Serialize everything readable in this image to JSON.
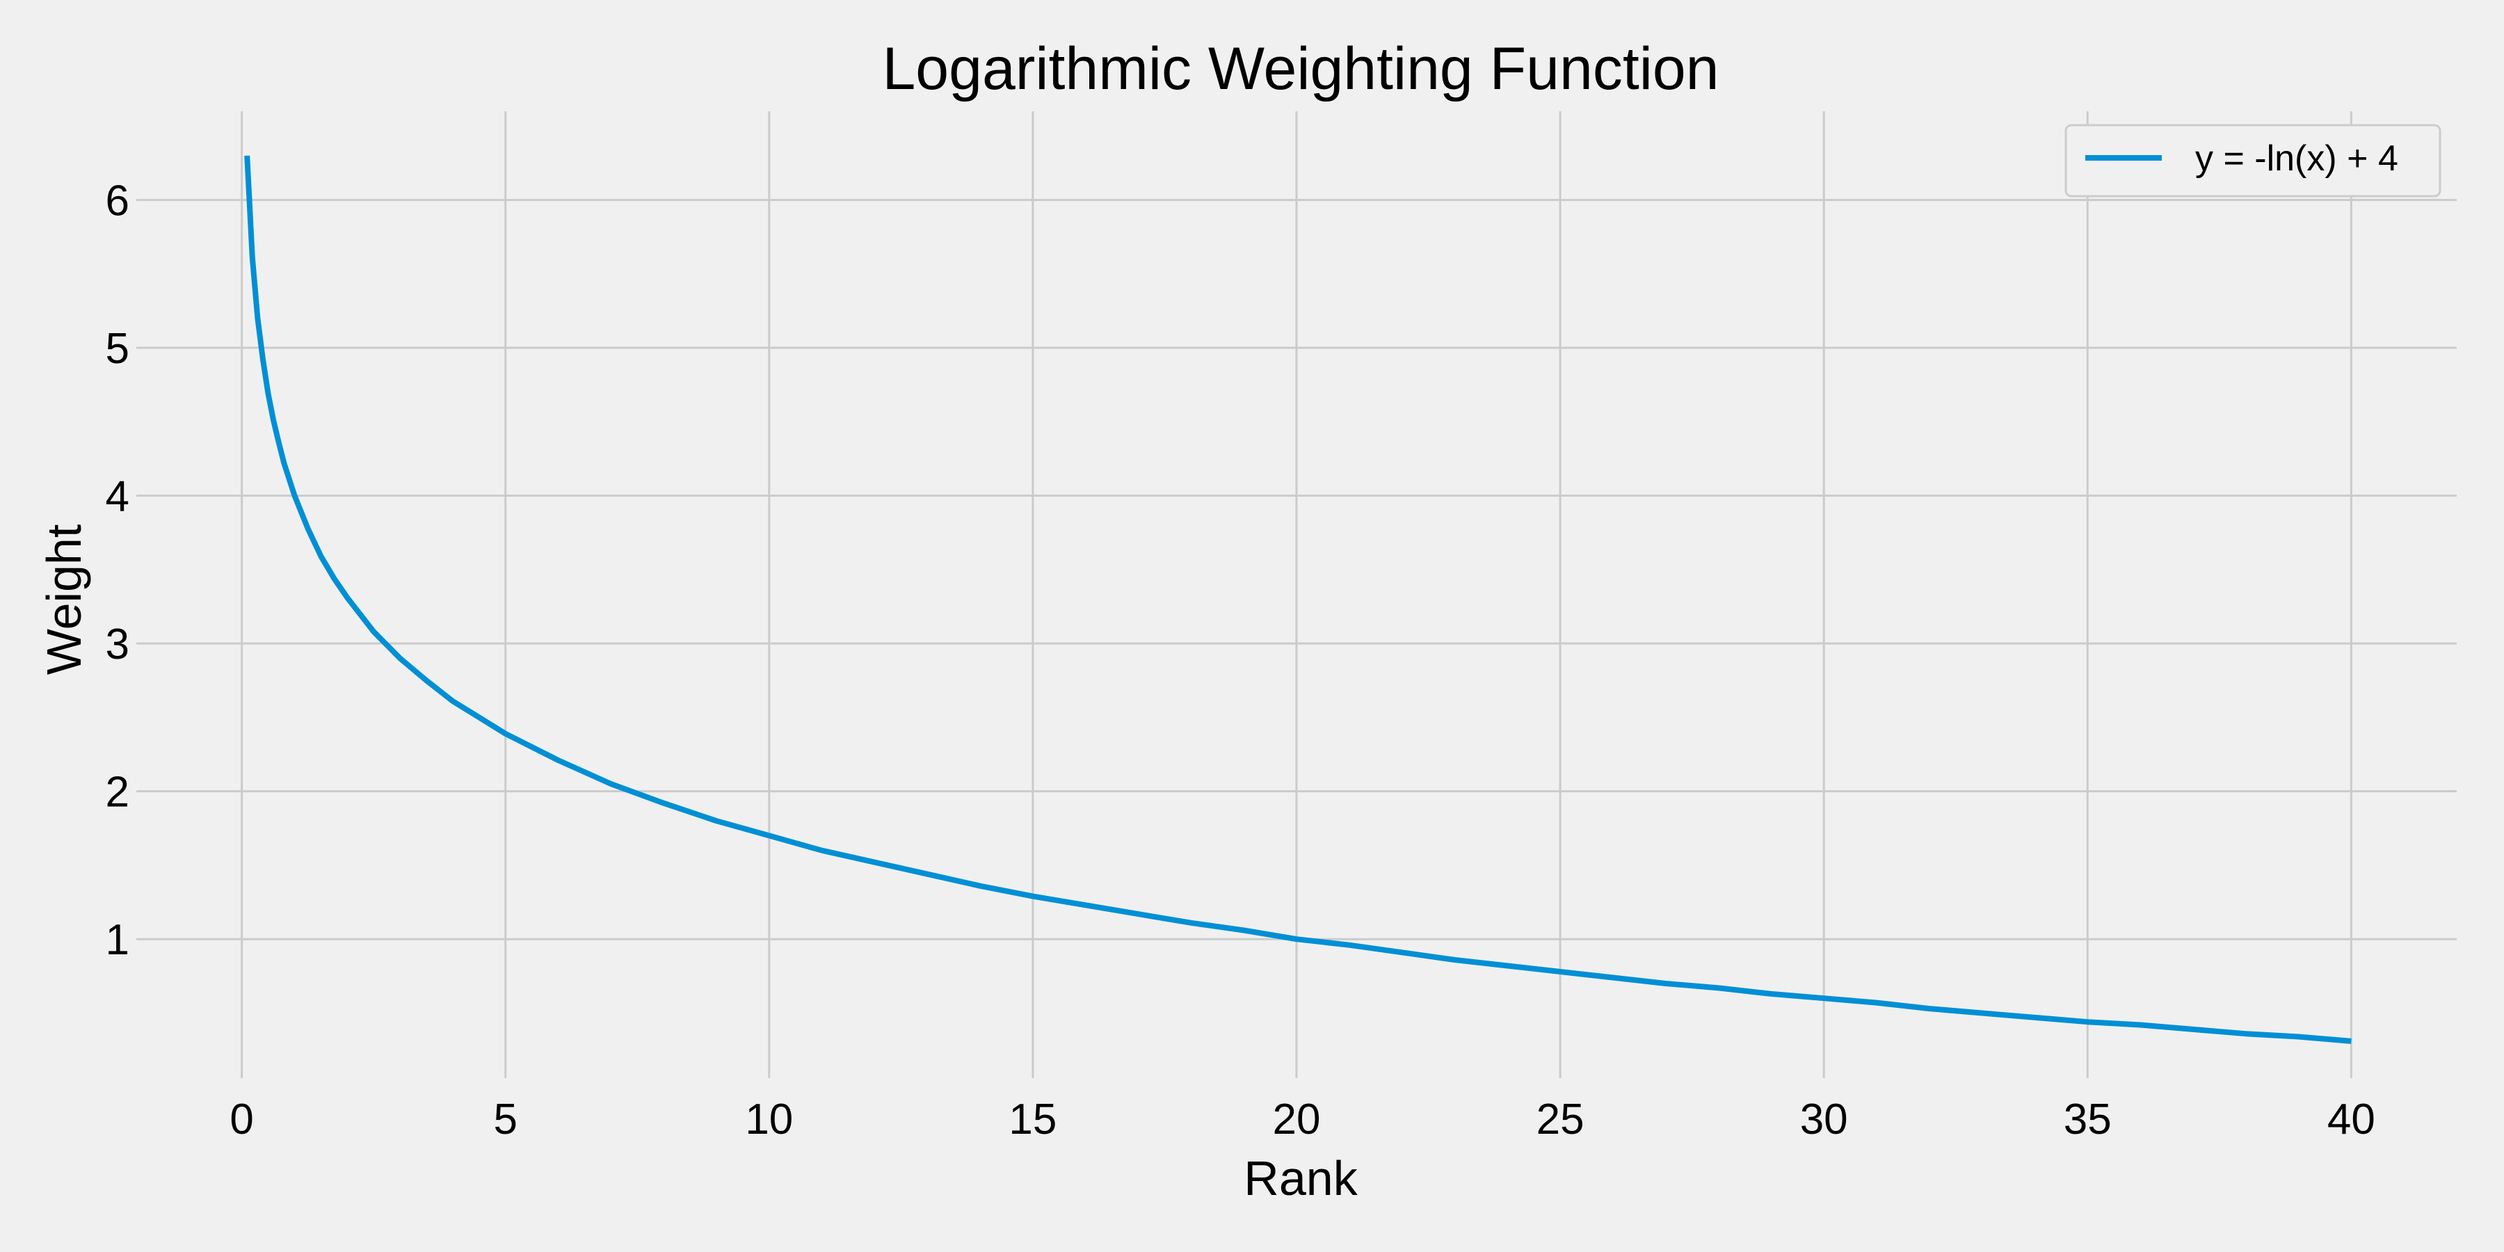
{
  "chart_data": {
    "type": "line",
    "title": "Logarithmic Weighting Function",
    "xlabel": "Rank",
    "ylabel": "Weight",
    "xlim": [
      -2,
      42
    ],
    "ylim": [
      0.06,
      6.6
    ],
    "xticks": [
      0,
      5,
      10,
      15,
      20,
      25,
      30,
      35,
      40
    ],
    "yticks": [
      1,
      2,
      3,
      4,
      5,
      6
    ],
    "grid": true,
    "legend_position": "top-right",
    "series": [
      {
        "name": "y = -ln(x) + 4",
        "color": "#008fd5",
        "x": [
          0.1,
          0.2,
          0.3,
          0.4,
          0.5,
          0.6,
          0.7,
          0.8,
          0.9,
          1,
          1.25,
          1.5,
          1.75,
          2,
          2.5,
          3,
          3.5,
          4,
          4.5,
          5,
          6,
          7,
          8,
          9,
          10,
          11,
          12,
          13,
          14,
          15,
          16,
          17,
          18,
          19,
          20,
          21,
          22,
          23,
          24,
          25,
          26,
          27,
          28,
          29,
          30,
          31,
          32,
          33,
          34,
          35,
          36,
          37,
          38,
          39,
          40
        ],
        "y": [
          6.3,
          5.61,
          5.2,
          4.92,
          4.69,
          4.51,
          4.36,
          4.22,
          4.11,
          4.0,
          3.78,
          3.59,
          3.44,
          3.31,
          3.08,
          2.9,
          2.75,
          2.61,
          2.5,
          2.39,
          2.21,
          2.05,
          1.92,
          1.8,
          1.7,
          1.6,
          1.52,
          1.44,
          1.36,
          1.29,
          1.23,
          1.17,
          1.11,
          1.06,
          1.0,
          0.96,
          0.91,
          0.86,
          0.82,
          0.78,
          0.74,
          0.7,
          0.67,
          0.63,
          0.6,
          0.57,
          0.53,
          0.5,
          0.47,
          0.44,
          0.42,
          0.39,
          0.36,
          0.34,
          0.31
        ]
      }
    ]
  }
}
